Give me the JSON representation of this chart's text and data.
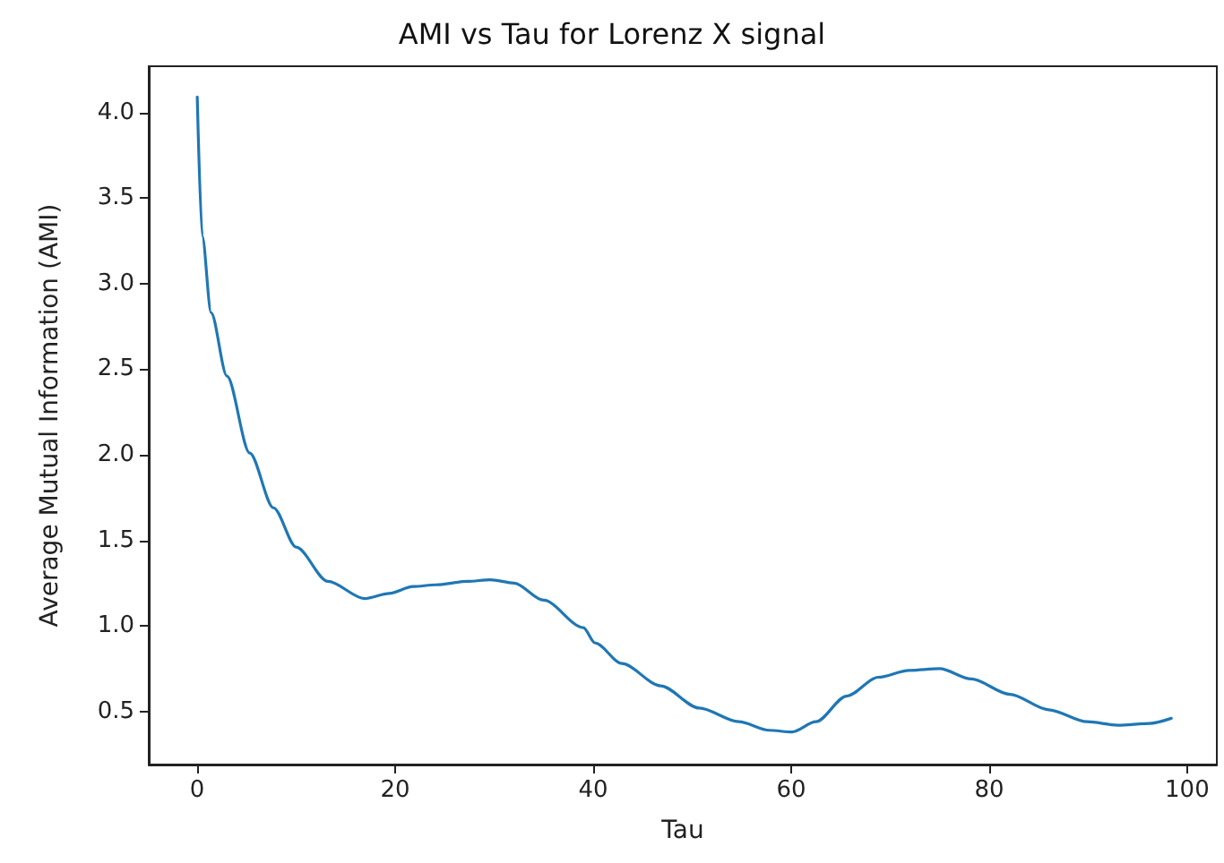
{
  "chart_data": {
    "type": "line",
    "title": "AMI vs Tau for Lorenz X signal",
    "xlabel": "Tau",
    "ylabel": "Average Mutual Information (AMI)",
    "xlim": [
      -4.9,
      103
    ],
    "xticks": [
      0,
      20,
      40,
      60,
      80,
      100
    ],
    "ylim": [
      0.19,
      4.27
    ],
    "yticks": [
      0.5,
      {
        "value": 1,
        "label": "1.0"
      },
      1.5,
      {
        "value": 2,
        "label": "2.0"
      },
      2.5,
      {
        "value": 3,
        "label": "3.0"
      },
      3.5,
      {
        "value": 4,
        "label": "4.0"
      }
    ],
    "grid": false,
    "marker": "none",
    "line_style": "solid",
    "series": [
      {
        "color": "#1f77b4",
        "x": [
          0,
          0.5,
          1.4,
          3,
          5.3,
          7.7,
          10,
          13.2,
          16.9,
          19.4,
          21.8,
          24.1,
          27.3,
          29.6,
          32,
          35,
          39,
          40.2,
          42.9,
          46.8,
          50.7,
          54.7,
          57.8,
          60.1,
          62.5,
          65.6,
          68.8,
          71.9,
          75,
          78.2,
          82.1,
          86,
          89.9,
          93,
          96.2,
          98.4
        ],
        "values": [
          4.09,
          3.28,
          2.83,
          2.46,
          2.01,
          1.69,
          1.46,
          1.26,
          1.16,
          1.19,
          1.23,
          1.24,
          1.26,
          1.27,
          1.25,
          1.15,
          0.99,
          0.9,
          0.78,
          0.65,
          0.52,
          0.44,
          0.39,
          0.38,
          0.44,
          0.59,
          0.7,
          0.74,
          0.75,
          0.69,
          0.6,
          0.51,
          0.44,
          0.42,
          0.43,
          0.46
        ]
      }
    ]
  }
}
